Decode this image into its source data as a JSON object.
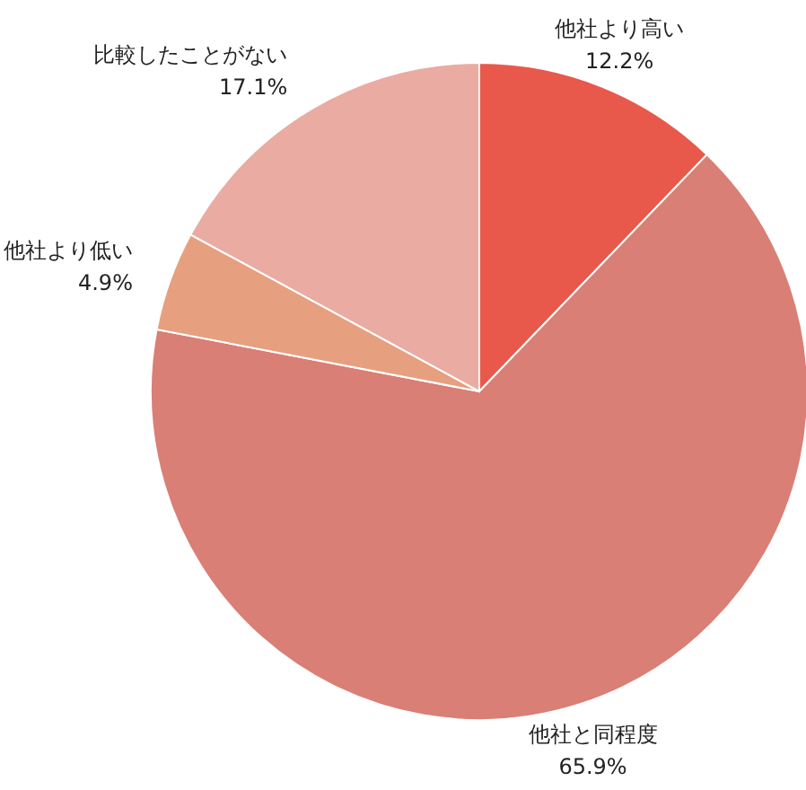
{
  "chart_data": {
    "type": "pie",
    "categories": [
      "他社より高い",
      "他社と同程度",
      "他社より低い",
      "比較したことがない"
    ],
    "values": [
      12.2,
      65.9,
      4.9,
      17.1
    ],
    "colors": [
      "#e8594c",
      "#d97f75",
      "#e6a07f",
      "#eaaba3"
    ],
    "value_labels": [
      "12.2%",
      "65.9%",
      "4.9%",
      "17.1%"
    ]
  }
}
